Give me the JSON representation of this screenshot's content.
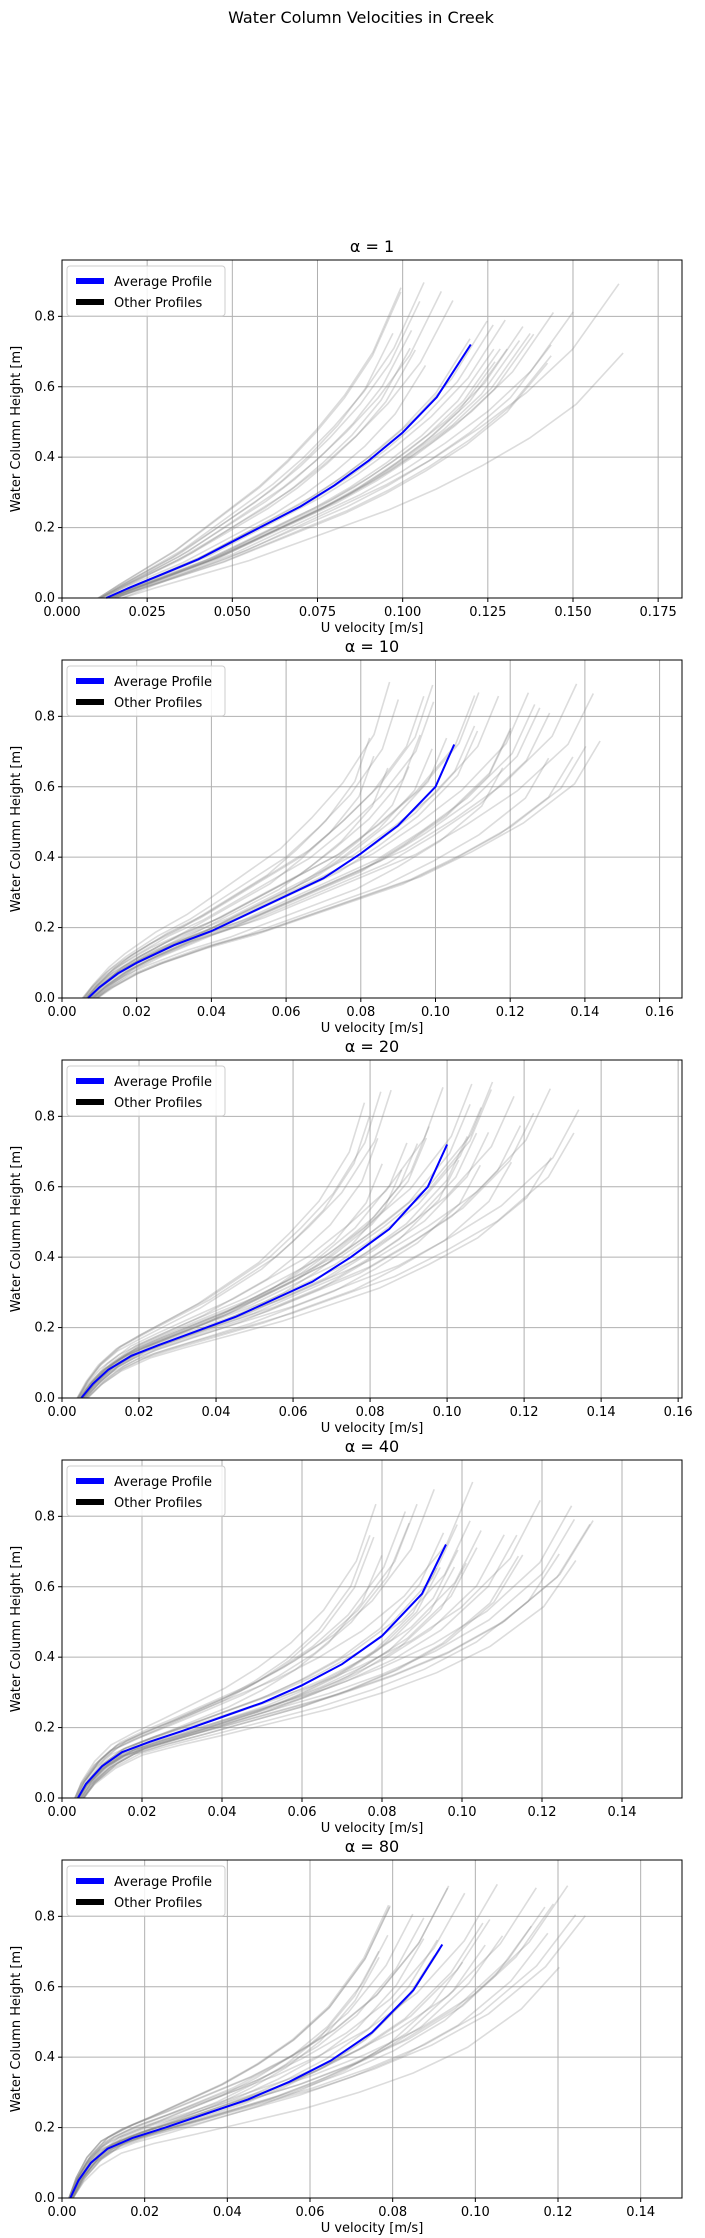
{
  "figure": {
    "title": "Water Column Velocities in Creek"
  },
  "legend": {
    "average_label": "Average Profile",
    "other_label": "Other Profiles",
    "placement": "upper-left"
  },
  "colors": {
    "average": "#0000ff",
    "other": "#808080",
    "grid": "#b0b0b0",
    "legend_line_average": "#0000ff",
    "legend_line_other": "#000000"
  },
  "chart_data": [
    {
      "type": "line",
      "title": "α = 1",
      "xlabel": "U velocity [m/s]",
      "ylabel": "Water Column Height [m]",
      "xlim": [
        0,
        0.182
      ],
      "ylim": [
        0,
        0.96
      ],
      "xticks": [
        "0.000",
        "0.025",
        "0.050",
        "0.075",
        "0.100",
        "0.125",
        "0.150",
        "0.175"
      ],
      "xtick_values": [
        0,
        0.025,
        0.05,
        0.075,
        0.1,
        0.125,
        0.15,
        0.175
      ],
      "yticks": [
        "0.0",
        "0.2",
        "0.4",
        "0.6",
        "0.8"
      ],
      "ytick_values": [
        0,
        0.2,
        0.4,
        0.6,
        0.8
      ],
      "grid": true,
      "series": [
        {
          "name": "Average Profile",
          "x": [
            0.013,
            0.02,
            0.03,
            0.04,
            0.05,
            0.06,
            0.07,
            0.08,
            0.09,
            0.1,
            0.11,
            0.12
          ],
          "y": [
            0,
            0.03,
            0.07,
            0.11,
            0.16,
            0.21,
            0.26,
            0.32,
            0.39,
            0.47,
            0.57,
            0.72
          ]
        }
      ]
    },
    {
      "type": "line",
      "title": "α = 10",
      "xlabel": "U velocity [m/s]",
      "ylabel": "Water Column Height [m]",
      "xlim": [
        0,
        0.166
      ],
      "ylim": [
        0,
        0.96
      ],
      "xticks": [
        "0.00",
        "0.02",
        "0.04",
        "0.06",
        "0.08",
        "0.10",
        "0.12",
        "0.14",
        "0.16"
      ],
      "xtick_values": [
        0,
        0.02,
        0.04,
        0.06,
        0.08,
        0.1,
        0.12,
        0.14,
        0.16
      ],
      "yticks": [
        "0.0",
        "0.2",
        "0.4",
        "0.6",
        "0.8"
      ],
      "ytick_values": [
        0,
        0.2,
        0.4,
        0.6,
        0.8
      ],
      "grid": true,
      "series": [
        {
          "name": "Average Profile",
          "x": [
            0.007,
            0.01,
            0.015,
            0.02,
            0.03,
            0.04,
            0.05,
            0.06,
            0.07,
            0.08,
            0.09,
            0.1,
            0.105
          ],
          "y": [
            0,
            0.03,
            0.07,
            0.1,
            0.15,
            0.19,
            0.24,
            0.29,
            0.34,
            0.41,
            0.49,
            0.6,
            0.72
          ]
        }
      ]
    },
    {
      "type": "line",
      "title": "α = 20",
      "xlabel": "U velocity [m/s]",
      "ylabel": "Water Column Height [m]",
      "xlim": [
        0,
        0.161
      ],
      "ylim": [
        0,
        0.96
      ],
      "xticks": [
        "0.00",
        "0.02",
        "0.04",
        "0.06",
        "0.08",
        "0.10",
        "0.12",
        "0.14",
        "0.16"
      ],
      "xtick_values": [
        0,
        0.02,
        0.04,
        0.06,
        0.08,
        0.1,
        0.12,
        0.14,
        0.16
      ],
      "yticks": [
        "0.0",
        "0.2",
        "0.4",
        "0.6",
        "0.8"
      ],
      "ytick_values": [
        0,
        0.2,
        0.4,
        0.6,
        0.8
      ],
      "grid": true,
      "series": [
        {
          "name": "Average Profile",
          "x": [
            0.005,
            0.008,
            0.012,
            0.018,
            0.025,
            0.035,
            0.045,
            0.055,
            0.065,
            0.075,
            0.085,
            0.095,
            0.1
          ],
          "y": [
            0,
            0.04,
            0.08,
            0.12,
            0.15,
            0.19,
            0.23,
            0.28,
            0.33,
            0.4,
            0.48,
            0.6,
            0.72
          ]
        }
      ]
    },
    {
      "type": "line",
      "title": "α = 40",
      "xlabel": "U velocity [m/s]",
      "ylabel": "Water Column Height [m]",
      "xlim": [
        0,
        0.155
      ],
      "ylim": [
        0,
        0.96
      ],
      "xticks": [
        "0.00",
        "0.02",
        "0.04",
        "0.06",
        "0.08",
        "0.10",
        "0.12",
        "0.14"
      ],
      "xtick_values": [
        0,
        0.02,
        0.04,
        0.06,
        0.08,
        0.1,
        0.12,
        0.14
      ],
      "yticks": [
        "0.0",
        "0.2",
        "0.4",
        "0.6",
        "0.8"
      ],
      "ytick_values": [
        0,
        0.2,
        0.4,
        0.6,
        0.8
      ],
      "grid": true,
      "series": [
        {
          "name": "Average Profile",
          "x": [
            0.004,
            0.006,
            0.01,
            0.015,
            0.022,
            0.03,
            0.04,
            0.05,
            0.06,
            0.07,
            0.08,
            0.09,
            0.096
          ],
          "y": [
            0,
            0.04,
            0.09,
            0.13,
            0.16,
            0.19,
            0.23,
            0.27,
            0.32,
            0.38,
            0.46,
            0.58,
            0.72
          ]
        }
      ]
    },
    {
      "type": "line",
      "title": "α = 80",
      "xlabel": "U velocity [m/s]",
      "ylabel": "Water Column Height [m]",
      "xlim": [
        0,
        0.15
      ],
      "ylim": [
        0,
        0.96
      ],
      "xticks": [
        "0.00",
        "0.02",
        "0.04",
        "0.06",
        "0.08",
        "0.10",
        "0.12",
        "0.14"
      ],
      "xtick_values": [
        0,
        0.02,
        0.04,
        0.06,
        0.08,
        0.1,
        0.12,
        0.14
      ],
      "yticks": [
        "0.0",
        "0.2",
        "0.4",
        "0.6",
        "0.8"
      ],
      "ytick_values": [
        0,
        0.2,
        0.4,
        0.6,
        0.8
      ],
      "grid": true,
      "series": [
        {
          "name": "Average Profile",
          "x": [
            0.002,
            0.004,
            0.007,
            0.011,
            0.017,
            0.025,
            0.035,
            0.045,
            0.055,
            0.065,
            0.075,
            0.085,
            0.092
          ],
          "y": [
            0,
            0.05,
            0.1,
            0.14,
            0.17,
            0.2,
            0.24,
            0.28,
            0.33,
            0.39,
            0.47,
            0.59,
            0.72
          ]
        }
      ]
    }
  ]
}
